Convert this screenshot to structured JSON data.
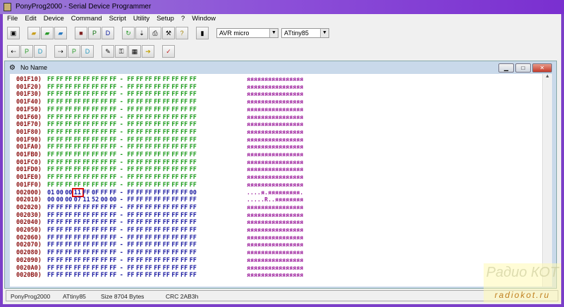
{
  "title": "PonyProg2000 - Serial Device Programmer",
  "menu": [
    "File",
    "Edit",
    "Device",
    "Command",
    "Script",
    "Utility",
    "Setup",
    "?",
    "Window"
  ],
  "toolbar": {
    "device_family": "AVR micro",
    "device_type": "ATtiny85"
  },
  "child_window": {
    "title": "No Name"
  },
  "colors": {
    "address": "#8b1010",
    "eeprom_bytes": "#1a9a1a",
    "flash_bytes": "#1a1aa0",
    "ascii": "#9a1a9a",
    "highlight": "#e01010"
  },
  "hex_rows": [
    {
      "address": "001F10)",
      "bytes": [
        "FF",
        "FF",
        "FF",
        "FF",
        "FF",
        "FF",
        "FF",
        "FF",
        "FF",
        "FF",
        "FF",
        "FF",
        "FF",
        "FF",
        "FF",
        "FF"
      ],
      "ascii": "яяяяяяяяяяяяяяяя",
      "group": "green"
    },
    {
      "address": "001F20)",
      "bytes": [
        "FF",
        "FF",
        "FF",
        "FF",
        "FF",
        "FF",
        "FF",
        "FF",
        "FF",
        "FF",
        "FF",
        "FF",
        "FF",
        "FF",
        "FF",
        "FF"
      ],
      "ascii": "яяяяяяяяяяяяяяяя",
      "group": "green"
    },
    {
      "address": "001F30)",
      "bytes": [
        "FF",
        "FF",
        "FF",
        "FF",
        "FF",
        "FF",
        "FF",
        "FF",
        "FF",
        "FF",
        "FF",
        "FF",
        "FF",
        "FF",
        "FF",
        "FF"
      ],
      "ascii": "яяяяяяяяяяяяяяяя",
      "group": "green"
    },
    {
      "address": "001F40)",
      "bytes": [
        "FF",
        "FF",
        "FF",
        "FF",
        "FF",
        "FF",
        "FF",
        "FF",
        "FF",
        "FF",
        "FF",
        "FF",
        "FF",
        "FF",
        "FF",
        "FF"
      ],
      "ascii": "яяяяяяяяяяяяяяяя",
      "group": "green"
    },
    {
      "address": "001F50)",
      "bytes": [
        "FF",
        "FF",
        "FF",
        "FF",
        "FF",
        "FF",
        "FF",
        "FF",
        "FF",
        "FF",
        "FF",
        "FF",
        "FF",
        "FF",
        "FF",
        "FF"
      ],
      "ascii": "яяяяяяяяяяяяяяяя",
      "group": "green"
    },
    {
      "address": "001F60)",
      "bytes": [
        "FF",
        "FF",
        "FF",
        "FF",
        "FF",
        "FF",
        "FF",
        "FF",
        "FF",
        "FF",
        "FF",
        "FF",
        "FF",
        "FF",
        "FF",
        "FF"
      ],
      "ascii": "яяяяяяяяяяяяяяяя",
      "group": "green"
    },
    {
      "address": "001F70)",
      "bytes": [
        "FF",
        "FF",
        "FF",
        "FF",
        "FF",
        "FF",
        "FF",
        "FF",
        "FF",
        "FF",
        "FF",
        "FF",
        "FF",
        "FF",
        "FF",
        "FF"
      ],
      "ascii": "яяяяяяяяяяяяяяяя",
      "group": "green"
    },
    {
      "address": "001F80)",
      "bytes": [
        "FF",
        "FF",
        "FF",
        "FF",
        "FF",
        "FF",
        "FF",
        "FF",
        "FF",
        "FF",
        "FF",
        "FF",
        "FF",
        "FF",
        "FF",
        "FF"
      ],
      "ascii": "яяяяяяяяяяяяяяяя",
      "group": "green"
    },
    {
      "address": "001F90)",
      "bytes": [
        "FF",
        "FF",
        "FF",
        "FF",
        "FF",
        "FF",
        "FF",
        "FF",
        "FF",
        "FF",
        "FF",
        "FF",
        "FF",
        "FF",
        "FF",
        "FF"
      ],
      "ascii": "яяяяяяяяяяяяяяяя",
      "group": "green"
    },
    {
      "address": "001FA0)",
      "bytes": [
        "FF",
        "FF",
        "FF",
        "FF",
        "FF",
        "FF",
        "FF",
        "FF",
        "FF",
        "FF",
        "FF",
        "FF",
        "FF",
        "FF",
        "FF",
        "FF"
      ],
      "ascii": "яяяяяяяяяяяяяяяя",
      "group": "green"
    },
    {
      "address": "001FB0)",
      "bytes": [
        "FF",
        "FF",
        "FF",
        "FF",
        "FF",
        "FF",
        "FF",
        "FF",
        "FF",
        "FF",
        "FF",
        "FF",
        "FF",
        "FF",
        "FF",
        "FF"
      ],
      "ascii": "яяяяяяяяяяяяяяяя",
      "group": "green"
    },
    {
      "address": "001FC0)",
      "bytes": [
        "FF",
        "FF",
        "FF",
        "FF",
        "FF",
        "FF",
        "FF",
        "FF",
        "FF",
        "FF",
        "FF",
        "FF",
        "FF",
        "FF",
        "FF",
        "FF"
      ],
      "ascii": "яяяяяяяяяяяяяяяя",
      "group": "green"
    },
    {
      "address": "001FD0)",
      "bytes": [
        "FF",
        "FF",
        "FF",
        "FF",
        "FF",
        "FF",
        "FF",
        "FF",
        "FF",
        "FF",
        "FF",
        "FF",
        "FF",
        "FF",
        "FF",
        "FF"
      ],
      "ascii": "яяяяяяяяяяяяяяяя",
      "group": "green"
    },
    {
      "address": "001FE0)",
      "bytes": [
        "FF",
        "FF",
        "FF",
        "FF",
        "FF",
        "FF",
        "FF",
        "FF",
        "FF",
        "FF",
        "FF",
        "FF",
        "FF",
        "FF",
        "FF",
        "FF"
      ],
      "ascii": "яяяяяяяяяяяяяяяя",
      "group": "green"
    },
    {
      "address": "001FF0)",
      "bytes": [
        "FF",
        "FF",
        "FF",
        "FF",
        "FF",
        "FF",
        "FF",
        "FF",
        "FF",
        "FF",
        "FF",
        "FF",
        "FF",
        "FF",
        "FF",
        "FF"
      ],
      "ascii": "яяяяяяяяяяяяяяяя",
      "group": "green"
    },
    {
      "address": "002000)",
      "bytes": [
        "01",
        "00",
        "00",
        "11",
        "FF",
        "0F",
        "FF",
        "FF",
        "FF",
        "FF",
        "FF",
        "FF",
        "FF",
        "FF",
        "FF",
        "00"
      ],
      "ascii": "....я.яяяяяяяяя.",
      "group": "blue",
      "highlight_index": 3
    },
    {
      "address": "002010)",
      "bytes": [
        "00",
        "00",
        "00",
        "07",
        "11",
        "52",
        "00",
        "00",
        "FF",
        "FF",
        "FF",
        "FF",
        "FF",
        "FF",
        "FF",
        "FF"
      ],
      "ascii": ".....R..яяяяяяяя",
      "group": "blue"
    },
    {
      "address": "002020)",
      "bytes": [
        "FF",
        "FF",
        "FF",
        "FF",
        "FF",
        "FF",
        "FF",
        "FF",
        "FF",
        "FF",
        "FF",
        "FF",
        "FF",
        "FF",
        "FF",
        "FF"
      ],
      "ascii": "яяяяяяяяяяяяяяяя",
      "group": "blue"
    },
    {
      "address": "002030)",
      "bytes": [
        "FF",
        "FF",
        "FF",
        "FF",
        "FF",
        "FF",
        "FF",
        "FF",
        "FF",
        "FF",
        "FF",
        "FF",
        "FF",
        "FF",
        "FF",
        "FF"
      ],
      "ascii": "яяяяяяяяяяяяяяяя",
      "group": "blue"
    },
    {
      "address": "002040)",
      "bytes": [
        "FF",
        "FF",
        "FF",
        "FF",
        "FF",
        "FF",
        "FF",
        "FF",
        "FF",
        "FF",
        "FF",
        "FF",
        "FF",
        "FF",
        "FF",
        "FF"
      ],
      "ascii": "яяяяяяяяяяяяяяяя",
      "group": "blue"
    },
    {
      "address": "002050)",
      "bytes": [
        "FF",
        "FF",
        "FF",
        "FF",
        "FF",
        "FF",
        "FF",
        "FF",
        "FF",
        "FF",
        "FF",
        "FF",
        "FF",
        "FF",
        "FF",
        "FF"
      ],
      "ascii": "яяяяяяяяяяяяяяяя",
      "group": "blue"
    },
    {
      "address": "002060)",
      "bytes": [
        "FF",
        "FF",
        "FF",
        "FF",
        "FF",
        "FF",
        "FF",
        "FF",
        "FF",
        "FF",
        "FF",
        "FF",
        "FF",
        "FF",
        "FF",
        "FF"
      ],
      "ascii": "яяяяяяяяяяяяяяяя",
      "group": "blue"
    },
    {
      "address": "002070)",
      "bytes": [
        "FF",
        "FF",
        "FF",
        "FF",
        "FF",
        "FF",
        "FF",
        "FF",
        "FF",
        "FF",
        "FF",
        "FF",
        "FF",
        "FF",
        "FF",
        "FF"
      ],
      "ascii": "яяяяяяяяяяяяяяяя",
      "group": "blue"
    },
    {
      "address": "002080)",
      "bytes": [
        "FF",
        "FF",
        "FF",
        "FF",
        "FF",
        "FF",
        "FF",
        "FF",
        "FF",
        "FF",
        "FF",
        "FF",
        "FF",
        "FF",
        "FF",
        "FF"
      ],
      "ascii": "яяяяяяяяяяяяяяяя",
      "group": "blue"
    },
    {
      "address": "002090)",
      "bytes": [
        "FF",
        "FF",
        "FF",
        "FF",
        "FF",
        "FF",
        "FF",
        "FF",
        "FF",
        "FF",
        "FF",
        "FF",
        "FF",
        "FF",
        "FF",
        "FF"
      ],
      "ascii": "яяяяяяяяяяяяяяяя",
      "group": "blue"
    },
    {
      "address": "0020A0)",
      "bytes": [
        "FF",
        "FF",
        "FF",
        "FF",
        "FF",
        "FF",
        "FF",
        "FF",
        "FF",
        "FF",
        "FF",
        "FF",
        "FF",
        "FF",
        "FF",
        "FF"
      ],
      "ascii": "яяяяяяяяяяяяяяяя",
      "group": "blue"
    },
    {
      "address": "0020B0)",
      "bytes": [
        "FF",
        "FF",
        "FF",
        "FF",
        "FF",
        "FF",
        "FF",
        "FF",
        "FF",
        "FF",
        "FF",
        "FF",
        "FF",
        "FF",
        "FF",
        "FF"
      ],
      "ascii": "яяяяяяяяяяяяяяяя",
      "group": "blue"
    }
  ],
  "separator": "-",
  "status": {
    "app": "PonyProg2000",
    "device": "ATtiny85",
    "size": "Size  8704 Bytes",
    "crc": "CRC  2AB3h"
  },
  "watermark": {
    "logo": "Радио КОТ",
    "site": "radiokot.ru"
  }
}
